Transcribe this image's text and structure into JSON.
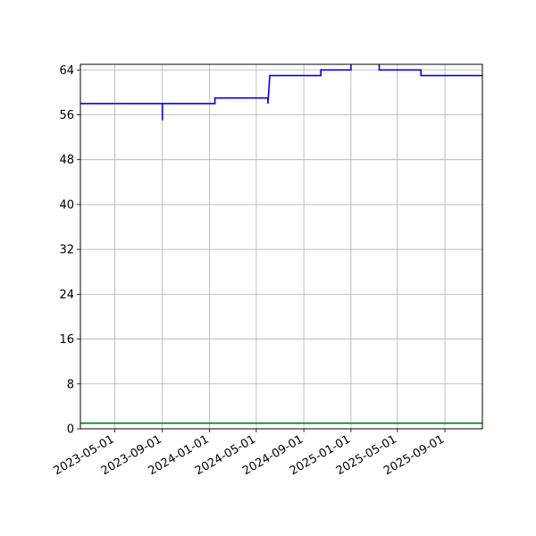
{
  "chart_data": {
    "type": "line",
    "title": "",
    "xlabel": "",
    "ylabel": "",
    "x_axis": {
      "type": "date",
      "range": [
        "2023-02-01",
        "2025-12-07"
      ],
      "ticks": [
        "2023-05-01",
        "2023-09-01",
        "2024-01-01",
        "2024-05-01",
        "2024-09-01",
        "2025-01-01",
        "2025-05-01",
        "2025-09-01"
      ]
    },
    "y_axis": {
      "range": [
        0,
        65
      ],
      "ticks": [
        0,
        8,
        16,
        24,
        32,
        40,
        48,
        56,
        64
      ]
    },
    "grid": true,
    "series": [
      {
        "color": "#0000ff",
        "points": [
          [
            "2023-02-01",
            58
          ],
          [
            "2023-09-01",
            58
          ],
          [
            "2023-09-01",
            55
          ],
          [
            "2023-09-01",
            58
          ],
          [
            "2024-01-15",
            58
          ],
          [
            "2024-01-15",
            59
          ],
          [
            "2024-05-31",
            59
          ],
          [
            "2024-05-31",
            58
          ],
          [
            "2024-06-05",
            63
          ],
          [
            "2024-10-15",
            63
          ],
          [
            "2024-10-15",
            64
          ],
          [
            "2025-01-01",
            64
          ],
          [
            "2025-01-01",
            65.5
          ],
          [
            "2025-03-15",
            65.5
          ],
          [
            "2025-03-15",
            64
          ],
          [
            "2025-07-01",
            64
          ],
          [
            "2025-07-01",
            63
          ],
          [
            "2025-12-07",
            63
          ]
        ]
      },
      {
        "color": "#008000",
        "points": [
          [
            "2023-02-01",
            1
          ],
          [
            "2025-12-07",
            1
          ]
        ]
      }
    ]
  }
}
